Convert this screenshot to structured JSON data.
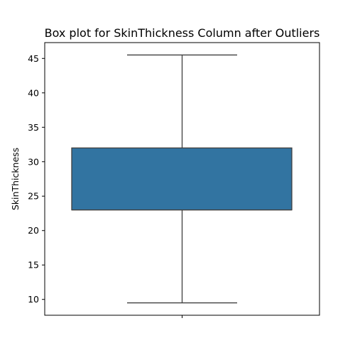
{
  "chart_data": {
    "type": "box",
    "title": "Box plot for SkinThickness Column after Outliers",
    "xlabel": "",
    "ylabel": "SkinThickness",
    "ylim": [
      7.7,
      47.3
    ],
    "yticks": [
      10,
      15,
      20,
      25,
      30,
      35,
      40,
      45
    ],
    "grid": false,
    "series": [
      {
        "values": {
          "whisker_low": 9.5,
          "q1": 23,
          "median": 23,
          "q3": 32,
          "whisker_high": 45.5
        },
        "color": "#3274a1"
      }
    ]
  }
}
